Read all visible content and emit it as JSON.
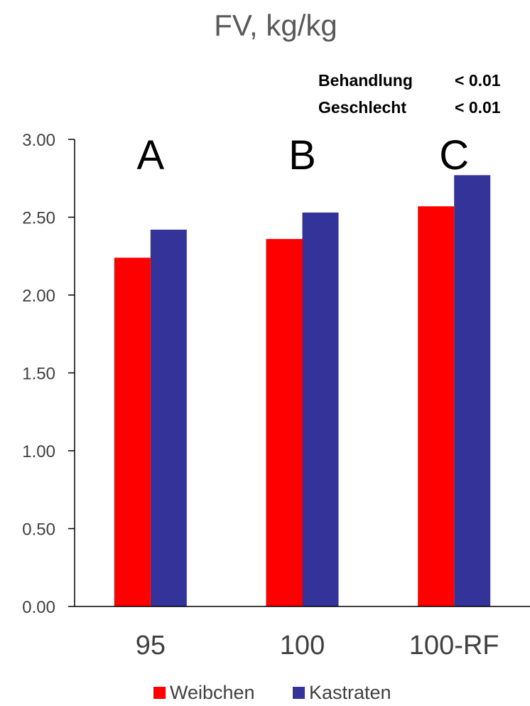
{
  "chart_data": {
    "type": "bar",
    "title": "FV, kg/kg",
    "categories": [
      "95",
      "100",
      "100-RF"
    ],
    "series": [
      {
        "name": "Weibchen",
        "values": [
          2.24,
          2.36,
          2.57
        ],
        "color": "#ff0000"
      },
      {
        "name": "Kastraten",
        "values": [
          2.42,
          2.53,
          2.77
        ],
        "color": "#333399"
      }
    ],
    "ylim": [
      0,
      3
    ],
    "yticks": [
      "0.00",
      "0.50",
      "1.00",
      "1.50",
      "2.00",
      "2.50",
      "3.00"
    ],
    "ytick_values": [
      0,
      0.5,
      1,
      1.5,
      2,
      2.5,
      3
    ],
    "group_letters": [
      "A",
      "B",
      "C"
    ],
    "stats": [
      {
        "label": "Behandlung",
        "value": "< 0.01"
      },
      {
        "label": "Geschlecht",
        "value": "< 0.01"
      }
    ],
    "grid": false,
    "legend_position": "bottom"
  }
}
